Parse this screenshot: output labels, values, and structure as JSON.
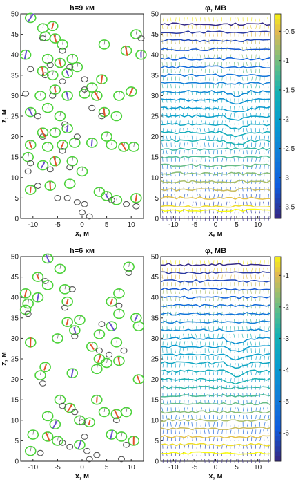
{
  "chart_data": [
    {
      "type": "scatter",
      "title": "h=9 км",
      "xlabel": "x, м",
      "ylabel": "z, м",
      "xlim": [
        -12.5,
        12.5
      ],
      "ylim": [
        0,
        50
      ],
      "xticks": [
        "-10",
        "-5",
        "0",
        "5",
        "10"
      ],
      "yticks": [
        "0",
        "5",
        "10",
        "15",
        "20",
        "25",
        "30",
        "35",
        "40",
        "45",
        "50"
      ],
      "series": [
        {
          "name": "",
          "color": "#4cd23a",
          "points": [
            [
              -10.5,
              49
            ],
            [
              -8,
              46.5
            ],
            [
              -6,
              47
            ],
            [
              -7.5,
              44.5
            ],
            [
              -5.5,
              44
            ],
            [
              -4,
              42.5
            ],
            [
              -11.5,
              40
            ],
            [
              -7,
              39
            ],
            [
              -4.5,
              38
            ],
            [
              -2,
              39
            ],
            [
              -8,
              36
            ],
            [
              -6,
              35
            ],
            [
              -3,
              35.5
            ],
            [
              -1,
              37
            ],
            [
              4,
              34
            ],
            [
              2,
              32
            ],
            [
              -5.5,
              31.5
            ],
            [
              -8.5,
              30
            ],
            [
              -3,
              30
            ],
            [
              0.5,
              30.5
            ],
            [
              3,
              30
            ],
            [
              7.5,
              30
            ],
            [
              10,
              31
            ],
            [
              -7,
              27
            ],
            [
              -10.5,
              26
            ],
            [
              -4.5,
              25
            ],
            [
              4.5,
              26
            ],
            [
              7,
              25
            ],
            [
              -8,
              21
            ],
            [
              -5.5,
              21
            ],
            [
              -3,
              22
            ],
            [
              5,
              20
            ],
            [
              -10.5,
              18
            ],
            [
              -7,
              17.5
            ],
            [
              -4,
              18
            ],
            [
              -1.5,
              18.5
            ],
            [
              2,
              18.5
            ],
            [
              6,
              18
            ],
            [
              8.5,
              17.5
            ],
            [
              -11,
              15
            ],
            [
              -5.5,
              14
            ],
            [
              -2,
              14
            ],
            [
              -8,
              13
            ],
            [
              0,
              11.5
            ],
            [
              -6.5,
              8
            ],
            [
              -2.5,
              8.5
            ],
            [
              -10.5,
              7
            ],
            [
              3.5,
              6.5
            ],
            [
              5,
              5.5
            ],
            [
              7,
              4.5
            ],
            [
              11,
              5
            ],
            [
              10.5,
              17.5
            ],
            [
              9,
              41
            ],
            [
              4.5,
              42.5
            ],
            [
              12,
              40
            ],
            [
              11,
              45
            ]
          ]
        },
        {
          "name": "",
          "color": "#555555",
          "points": [
            [
              -8,
              44
            ],
            [
              -4,
              41
            ],
            [
              -6.5,
              37.5
            ],
            [
              -2.5,
              37
            ],
            [
              -7.5,
              35
            ],
            [
              0.5,
              34
            ],
            [
              -4,
              33.5
            ],
            [
              -11.5,
              30.5
            ],
            [
              -6,
              30
            ],
            [
              2,
              27
            ],
            [
              0.5,
              31.5
            ],
            [
              -9,
              25
            ],
            [
              -3.5,
              23
            ],
            [
              4,
              25
            ],
            [
              -8,
              20
            ],
            [
              -1,
              20
            ],
            [
              -4,
              16.5
            ],
            [
              -10.5,
              13.5
            ],
            [
              -6.5,
              12
            ],
            [
              -2.5,
              12.5
            ],
            [
              -11,
              11.5
            ],
            [
              -9,
              8
            ],
            [
              -5,
              5
            ],
            [
              -3,
              5
            ],
            [
              -1,
              4
            ],
            [
              0.5,
              3.5
            ],
            [
              0,
              1.5
            ],
            [
              1.5,
              0.5
            ],
            [
              6,
              4.5
            ],
            [
              9,
              3.5
            ],
            [
              11,
              3
            ],
            [
              -10.5,
              36.5
            ],
            [
              12,
              44
            ]
          ]
        }
      ]
    },
    {
      "type": "heatmap",
      "title": "φ, МВ",
      "xlabel": "x, м",
      "ylabel": "",
      "xlim": [
        -13,
        13
      ],
      "ylim": [
        0,
        50
      ],
      "xticks": [
        "-10",
        "-5",
        "0",
        "5",
        "10"
      ],
      "yticks": [
        "0",
        "5",
        "10",
        "15",
        "20",
        "25",
        "30",
        "35",
        "40",
        "45",
        "50"
      ],
      "colorbar": {
        "min": -3.7,
        "max": -0.2,
        "ticks": [
          "-0.5",
          "-1",
          "-1.5",
          "-2",
          "-2.5",
          "-3",
          "-3.5"
        ]
      },
      "contour_levels": [
        47.5,
        45.5,
        43.5,
        41.3,
        39,
        37,
        35,
        33,
        31,
        29,
        27,
        25,
        23,
        21,
        19,
        17,
        15,
        13,
        11,
        9,
        7,
        5,
        3,
        2
      ]
    },
    {
      "type": "scatter",
      "title": "h=6 км",
      "xlabel": "x, м",
      "ylabel": "z, м",
      "xlim": [
        -12.5,
        12.5
      ],
      "ylim": [
        0,
        50
      ],
      "xticks": [
        "-10",
        "-5",
        "0",
        "5",
        "10"
      ],
      "yticks": [
        "0",
        "5",
        "10",
        "15",
        "20",
        "25",
        "30",
        "35",
        "40",
        "45",
        "50"
      ],
      "series": [
        {
          "name": "",
          "color": "#4cd23a",
          "points": [
            [
              -7,
              49.5
            ],
            [
              -4.5,
              47
            ],
            [
              -9,
              45
            ],
            [
              -7,
              43
            ],
            [
              -11.5,
              41
            ],
            [
              -3.5,
              42
            ],
            [
              -9,
              40
            ],
            [
              -11,
              38.5
            ],
            [
              -3,
              39
            ],
            [
              -11.5,
              37
            ],
            [
              -3,
              34
            ],
            [
              -0.5,
              34.5
            ],
            [
              -1.5,
              32
            ],
            [
              -5,
              30
            ],
            [
              -10.5,
              29
            ],
            [
              7.5,
              41
            ],
            [
              6,
              39
            ],
            [
              7.5,
              36
            ],
            [
              6,
              33
            ],
            [
              3.5,
              31
            ],
            [
              2,
              28
            ],
            [
              7,
              29
            ],
            [
              3.5,
              25
            ],
            [
              5,
              24
            ],
            [
              11,
              35
            ],
            [
              11.5,
              33
            ],
            [
              7.5,
              24.5
            ],
            [
              9.5,
              47.5
            ],
            [
              -7.5,
              23
            ],
            [
              -8.5,
              21
            ],
            [
              -2,
              21.5
            ],
            [
              3,
              22.5
            ],
            [
              11.5,
              20
            ],
            [
              -4.5,
              15
            ],
            [
              -2.5,
              13
            ],
            [
              -7,
              11
            ],
            [
              -5.5,
              9
            ],
            [
              -0.5,
              10
            ],
            [
              1.5,
              9.5
            ],
            [
              -10,
              6.5
            ],
            [
              -7,
              6
            ],
            [
              -5,
              5
            ],
            [
              -0.5,
              4
            ],
            [
              -10.5,
              2.5
            ],
            [
              3,
              15
            ],
            [
              4.5,
              12
            ],
            [
              7,
              11.5
            ],
            [
              9,
              12
            ],
            [
              6,
              6.5
            ],
            [
              8,
              6
            ],
            [
              10.5,
              5
            ]
          ]
        },
        {
          "name": "",
          "color": "#555555",
          "points": [
            [
              -7.5,
              44
            ],
            [
              -2,
              42
            ],
            [
              -3.5,
              37.5
            ],
            [
              -1.5,
              30.5
            ],
            [
              -11,
              36
            ],
            [
              -8,
              19
            ],
            [
              7.5,
              38
            ],
            [
              4,
              33.5
            ],
            [
              3.5,
              27
            ],
            [
              5.5,
              26
            ],
            [
              8.5,
              27
            ],
            [
              -4,
              13.5
            ],
            [
              -1.5,
              12
            ],
            [
              0,
              9.5
            ],
            [
              0.5,
              6
            ],
            [
              -4,
              4.5
            ],
            [
              -2.5,
              3.5
            ],
            [
              -8.5,
              2
            ],
            [
              1,
              2.5
            ],
            [
              1.5,
              0.5
            ],
            [
              3,
              1.5
            ],
            [
              7,
              10
            ],
            [
              9,
              4
            ],
            [
              8,
              0.5
            ],
            [
              9.5,
              46
            ]
          ]
        }
      ]
    },
    {
      "type": "heatmap",
      "title": "φ, МВ",
      "xlabel": "x, м",
      "ylabel": "",
      "xlim": [
        -13,
        13
      ],
      "ylim": [
        0,
        50
      ],
      "xticks": [
        "-10",
        "-5",
        "0",
        "5",
        "10"
      ],
      "yticks": [
        "0",
        "5",
        "10",
        "15",
        "20",
        "25",
        "30",
        "35",
        "40",
        "45",
        "50"
      ],
      "colorbar": {
        "min": -6.9,
        "max": -0.4,
        "ticks": [
          "-1",
          "-2",
          "-3",
          "-4",
          "-5",
          "-6"
        ]
      },
      "contour_levels": [
        48,
        46,
        44,
        42,
        40,
        38,
        36,
        34,
        32,
        30,
        28,
        26,
        24,
        22,
        20,
        18,
        16,
        14,
        12,
        10,
        8,
        6,
        4,
        2
      ]
    }
  ]
}
